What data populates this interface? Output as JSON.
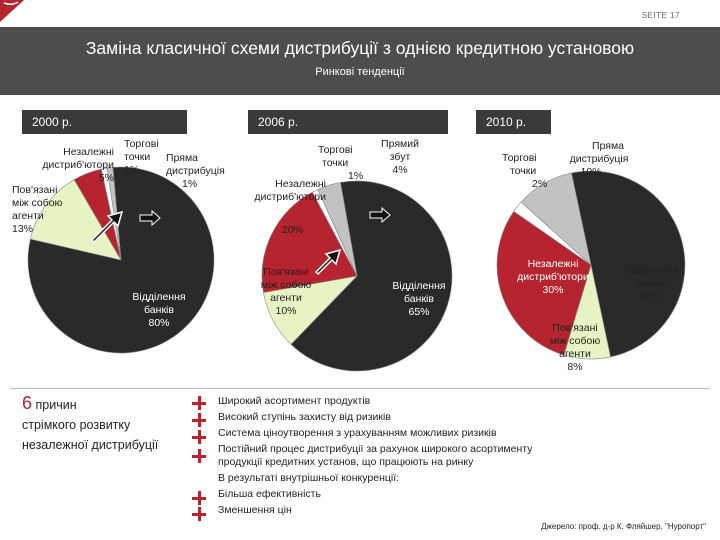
{
  "page": {
    "number": "SEITE 17"
  },
  "header": {
    "title": "Заміна класичної схеми дистрибуції з однією кредитною установою",
    "subtitle": "Ринкові тенденції"
  },
  "colors": {
    "red": "#b5242f",
    "lightgreen": "#e6f4c4",
    "lightgray": "#c2c2c2",
    "white": "#ffffff",
    "dark": "#2a2a2a",
    "titlebar": "#4d4d4d"
  },
  "chart_data": [
    {
      "type": "pie",
      "year": "2000 р.",
      "slices": [
        {
          "name": "Відділення банків",
          "value": 80,
          "color": "#2a2a2a",
          "label": "Відділення банків 80%"
        },
        {
          "name": "Пов'язані між собою агенти",
          "value": 13,
          "color": "#e6f4c4",
          "label": "Пов'язані між собою агенти 13%"
        },
        {
          "name": "Незалежні дистриб'ютори",
          "value": 5,
          "color": "#b5242f",
          "label": "Незалежні дистриб'ютори 5%"
        },
        {
          "name": "Торгові точки",
          "value": 1,
          "color": "#ffffff",
          "label": "Торгові точки 1%"
        },
        {
          "name": "Пряма дистрибуція",
          "value": 1,
          "color": "#c2c2c2",
          "label": "Пряма дистрибуція 1%"
        }
      ]
    },
    {
      "type": "pie",
      "year": "2006 р.",
      "slices": [
        {
          "name": "Відділення банків",
          "value": 65,
          "color": "#2a2a2a",
          "label": "Відділення банків 65%"
        },
        {
          "name": "Пов'язані між собою агенти",
          "value": 10,
          "color": "#e6f4c4",
          "label": "Пов'язані між собою агенти 10%"
        },
        {
          "name": "Незалежні дистриб'ютори",
          "value": 20,
          "color": "#b5242f",
          "label": "Незалежні дистриб'ютори 20%"
        },
        {
          "name": "Торгові точки",
          "value": 1,
          "color": "#ffffff",
          "label": "Торгові точки 1%"
        },
        {
          "name": "Прямий збут",
          "value": 4,
          "color": "#c2c2c2",
          "label": "Прямий збут 4%"
        }
      ]
    },
    {
      "type": "pie",
      "year": "2010 р.",
      "slices": [
        {
          "name": "Відділення банків",
          "value": 50,
          "color": "#2a2a2a",
          "label": "Відділення банків 50%"
        },
        {
          "name": "Пов'язані між собою агенти",
          "value": 8,
          "color": "#e6f4c4",
          "label": "Пов'язані між собою агенти 8%"
        },
        {
          "name": "Незалежні дистриб'ютори",
          "value": 30,
          "color": "#b5242f",
          "label": "Незалежні дистриб'ютори 30%"
        },
        {
          "name": "Торгові точки",
          "value": 2,
          "color": "#ffffff",
          "label": "Торгові точки 2%"
        },
        {
          "name": "Пряма дистрибуція",
          "value": 10,
          "color": "#c2c2c2",
          "label": "Пряма дистрибуція 10%"
        }
      ]
    }
  ],
  "labels2000": {
    "torgovi": [
      "Торгові",
      "точки",
      "1%"
    ],
    "pryama": [
      "Пряма",
      "дистрибуція",
      "1%"
    ],
    "nezalezhni": [
      "Незалежні",
      "дистриб'ютори",
      "5%"
    ],
    "povyazani": [
      "Пов'язані",
      "між собою",
      "агенти",
      "13%"
    ],
    "viddilennya": [
      "Відділення",
      "банків",
      "80%"
    ]
  },
  "labels2006": {
    "torgovi": [
      "Торгові",
      "точки",
      "1%"
    ],
    "pryamyi": [
      "Прямий",
      "збут",
      "4%"
    ],
    "nezalezhni": [
      "Незалежні",
      "дистриб'ютори"
    ],
    "nezalezhni_pct": "20%",
    "povyazani": [
      "Пов'язані",
      "між собою",
      "агенти",
      "10%"
    ],
    "viddilennya": [
      "Відділення",
      "банків",
      "65%"
    ]
  },
  "labels2010": {
    "torgovi": [
      "Торгові",
      "точки",
      "2%"
    ],
    "pryama": [
      "Пряма",
      "дистрибуція",
      "10%"
    ],
    "nezalezhni": [
      "Незалежні",
      "дистриб'ютори",
      "30%"
    ],
    "povyazani": [
      "Пов'язані",
      "між собою",
      "агенти",
      "8%"
    ],
    "viddilennya": [
      "Відділення",
      "банків",
      "50%"
    ]
  },
  "reasons": {
    "number": "6",
    "line1": "причин",
    "line2": "стрімкого розвитку",
    "line3": "незалежної дистрибуції"
  },
  "bullets": [
    "Широкий асортимент продуктів",
    "Високий ступінь захисту від ризиків",
    "Система ціноутворення з урахуванням можливих ризиків",
    "Постійний процес дистрибуції за рахунок широкого асортименту",
    "продукції кредитних установ, що працюють на ринку",
    "В результаті внутрішньої конкуренції:",
    "Більша ефективність",
    "Зменшення цін"
  ],
  "source": "Джерело: проф. д-р К. Фляйшер, \"Нуропорт\""
}
